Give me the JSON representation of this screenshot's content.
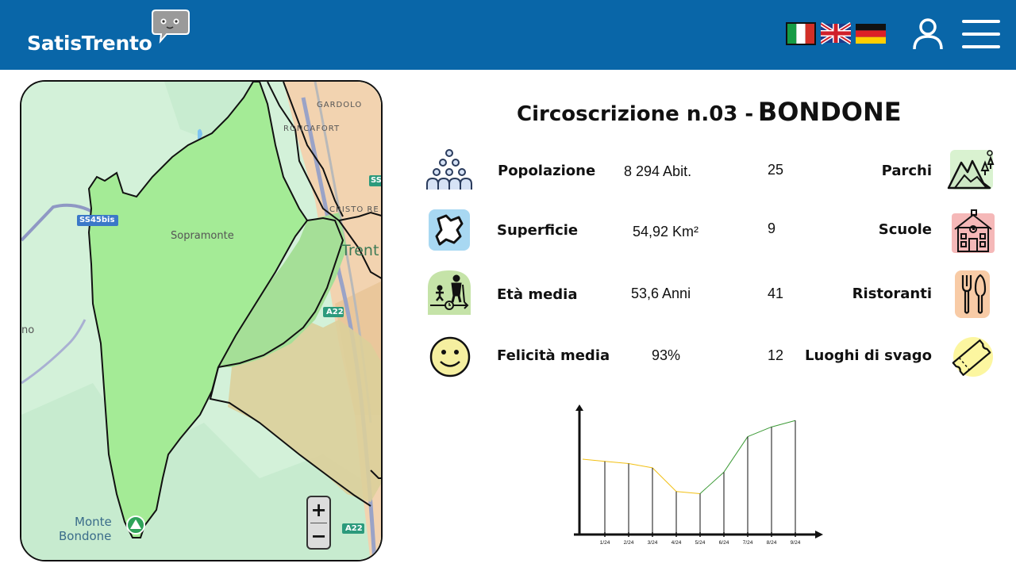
{
  "header": {
    "logo_text": "SatisTrento",
    "brand_color": "#0966a8",
    "languages": [
      "Italiano",
      "English",
      "Deutsch"
    ]
  },
  "map": {
    "places": {
      "gardolo": "GARDOLO",
      "roncafort": "RONCAFORT",
      "cristo_re": "CRISTO RE",
      "trento": "Trent",
      "sopramonte": "Sopramonte",
      "monte_bondone_1": "Monte",
      "monte_bondone_2": "Bondone",
      "left_edge": "no"
    },
    "roads": {
      "ss45bis": "SS45bis",
      "a22_top": "A22",
      "a22_bottom": "A22",
      "ss_right": "SS"
    },
    "zoom_in": "+",
    "zoom_out": "−"
  },
  "district": {
    "title_prefix": "Circoscrizione n.03 -",
    "title_name": "BONDONE"
  },
  "stats": [
    {
      "icon": "population-icon",
      "label": "Popolazione",
      "value": "8 294 Abit."
    },
    {
      "icon": "area-map-icon",
      "label": "Superficie",
      "value": "54,92 Km²"
    },
    {
      "icon": "age-icon",
      "label": "Età media",
      "value": "53,6 Anni"
    },
    {
      "icon": "smiley-icon",
      "label": "Felicità media",
      "value": "93%"
    }
  ],
  "amenities": [
    {
      "icon": "mountain-park-icon",
      "label": "Parchi",
      "count": "25"
    },
    {
      "icon": "school-icon",
      "label": "Scuole",
      "count": "9"
    },
    {
      "icon": "cutlery-icon",
      "label": "Ristoranti",
      "count": "41"
    },
    {
      "icon": "ticket-icon",
      "label": "Luoghi di svago",
      "count": "12"
    }
  ],
  "chart_data": {
    "type": "line",
    "categories": [
      "1/24",
      "2/24",
      "3/24",
      "4/24",
      "5/24",
      "6/24",
      "7/24",
      "8/24",
      "9/24"
    ],
    "values": [
      68,
      66,
      62,
      40,
      38,
      58,
      91,
      100,
      106
    ],
    "start_value": 70,
    "ylim": [
      0,
      115
    ],
    "colors": {
      "falling": "#f2c014",
      "rising": "#3c9a36"
    },
    "title": "",
    "xlabel": "",
    "ylabel": ""
  }
}
